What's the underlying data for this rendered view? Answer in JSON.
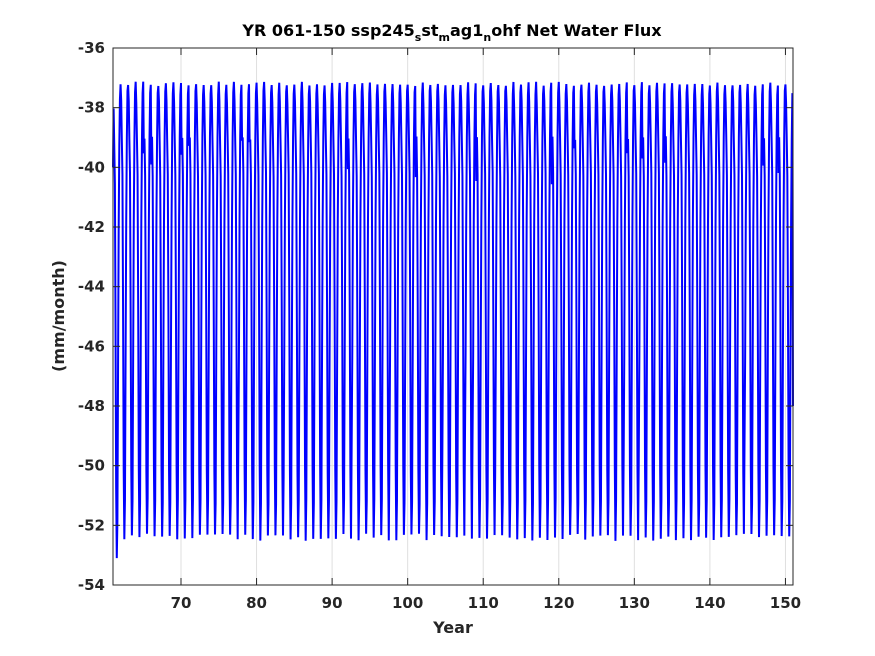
{
  "chart_data": {
    "type": "line",
    "title": {
      "main": "YR 061-150 ssp245",
      "sub1": "s",
      "mid1": "st",
      "sub2": "m",
      "mid2": "ag1",
      "sub3": "n",
      "tail": "ohf Net Water Flux"
    },
    "xlabel": "Year",
    "ylabel": "(mm/month)",
    "xlim": [
      61,
      151
    ],
    "ylim": [
      -54,
      -36
    ],
    "xticks": [
      70,
      80,
      90,
      100,
      110,
      120,
      130,
      140,
      150
    ],
    "xtick_labels": [
      "70",
      "80",
      "90",
      "100",
      "110",
      "120",
      "130",
      "140",
      "150"
    ],
    "yticks": [
      -36,
      -38,
      -40,
      -42,
      -44,
      -46,
      -48,
      -50,
      -52,
      -54
    ],
    "ytick_labels": [
      "-36",
      "-38",
      "-40",
      "-42",
      "-44",
      "-46",
      "-48",
      "-50",
      "-52",
      "-54"
    ],
    "grid": true,
    "series_color": "#0000ff",
    "series": [
      {
        "sampling": "monthly",
        "start_year": 61,
        "end_year": 151,
        "annual_cycle": {
          "upper_envelope": -37.2,
          "lower_envelope": -52.4,
          "inner_upper": -39.1,
          "inner_lower": -50.5
        },
        "first_year_extremes": {
          "max": -37.4,
          "min": -53.1
        }
      }
    ]
  }
}
